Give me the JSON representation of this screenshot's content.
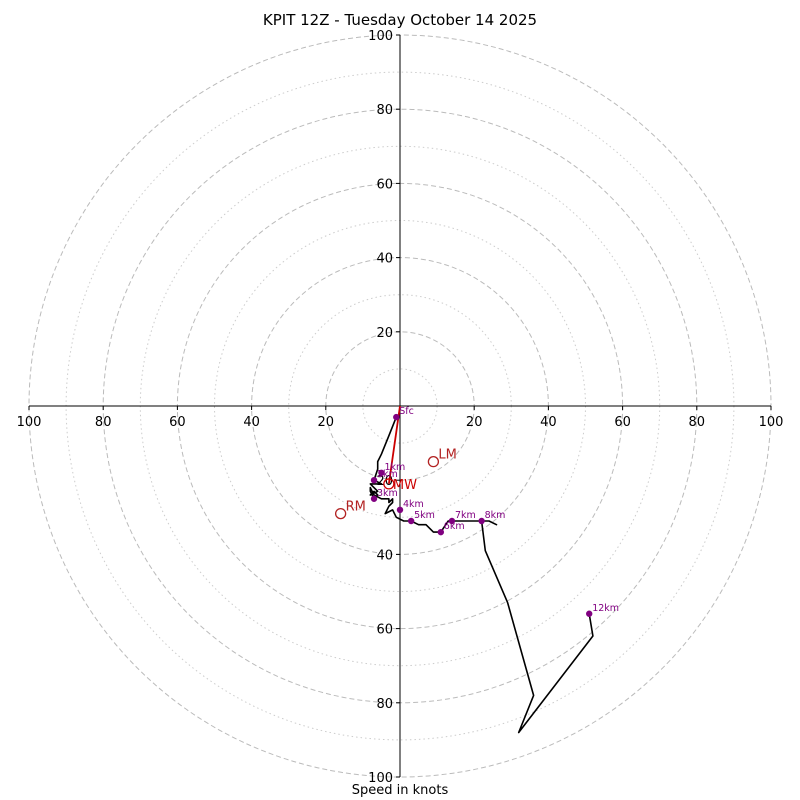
{
  "chart_data": {
    "type": "hodograph",
    "title": "KPIT 12Z - Tuesday October 14 2025",
    "xlabel": "Speed in knots",
    "units": "knots",
    "range": [
      -100,
      100
    ],
    "ring_major": [
      20,
      40,
      60,
      80,
      100
    ],
    "ring_minor": [
      10,
      30,
      50,
      70,
      90
    ],
    "tick_values": [
      20,
      40,
      60,
      80,
      100
    ],
    "colors": {
      "ring": "#bbbbbb",
      "trace": "#000000",
      "markers": "#800080",
      "mean_wind": "#cc0000",
      "storm_motion": "#b22222"
    },
    "wind_profile": [
      [
        -1,
        -3
      ],
      [
        -3,
        -8
      ],
      [
        -5,
        -13
      ],
      [
        -6,
        -15
      ],
      [
        -6,
        -17
      ],
      [
        -7,
        -20
      ],
      [
        -5,
        -21
      ],
      [
        -8,
        -21
      ],
      [
        -6,
        -23
      ],
      [
        -8,
        -24
      ],
      [
        -7,
        -23
      ],
      [
        -6,
        -24
      ],
      [
        -7,
        -25
      ],
      [
        -8,
        -23
      ],
      [
        -8,
        -22
      ],
      [
        -7,
        -24
      ],
      [
        -5,
        -25
      ],
      [
        -4,
        -25
      ],
      [
        -3,
        -25
      ],
      [
        -3,
        -26
      ],
      [
        -2,
        -25
      ],
      [
        -2,
        -26
      ],
      [
        -3,
        -27
      ],
      [
        -4,
        -29
      ],
      [
        -2,
        -28
      ],
      [
        -1,
        -30
      ],
      [
        1,
        -31
      ],
      [
        3,
        -31
      ],
      [
        5,
        -32
      ],
      [
        7,
        -32
      ],
      [
        9,
        -34
      ],
      [
        11,
        -34
      ],
      [
        13,
        -31
      ],
      [
        15,
        -31
      ],
      [
        18,
        -31
      ],
      [
        22,
        -31
      ],
      [
        24,
        -31
      ],
      [
        26,
        -32
      ],
      [
        24,
        -31
      ],
      [
        22,
        -31
      ],
      [
        23,
        -39
      ],
      [
        29,
        -53
      ],
      [
        36,
        -78
      ],
      [
        32,
        -88
      ],
      [
        52,
        -62
      ],
      [
        51,
        -56
      ]
    ],
    "height_markers": [
      {
        "label": "Sfc",
        "u": -1,
        "v": -3
      },
      {
        "label": "1km",
        "u": -5,
        "v": -18
      },
      {
        "label": "2km",
        "u": -7,
        "v": -20
      },
      {
        "label": "3km",
        "u": -7,
        "v": -25
      },
      {
        "label": "4km",
        "u": 0,
        "v": -28
      },
      {
        "label": "5km",
        "u": 3,
        "v": -31
      },
      {
        "label": "6km",
        "u": 11,
        "v": -34
      },
      {
        "label": "7km",
        "u": 14,
        "v": -31
      },
      {
        "label": "8km",
        "u": 22,
        "v": -31
      },
      {
        "label": "12km",
        "u": 51,
        "v": -56
      }
    ],
    "mean_wind": {
      "label": "MW",
      "u": -3,
      "v": -21
    },
    "mean_wind_shear_vector": [
      [
        0,
        0
      ],
      [
        -3,
        -21
      ]
    ],
    "storm_motion": [
      {
        "label": "LM",
        "u": 9,
        "v": -15
      },
      {
        "label": "RM",
        "u": -16,
        "v": -29
      }
    ]
  }
}
